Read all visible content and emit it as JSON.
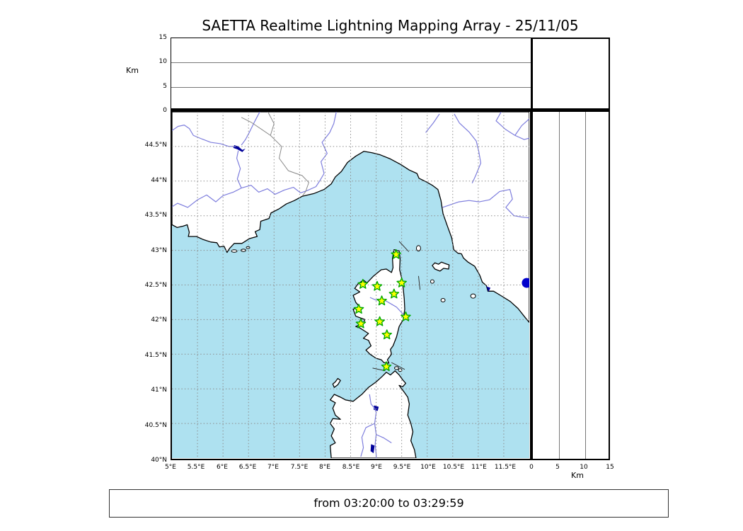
{
  "title": "SAETTA Realtime Lightning Mapping Array - 25/11/05",
  "footer": {
    "time_range": "from 03:20:00 to 03:29:59"
  },
  "colors": {
    "sea": "#aee1f0",
    "land": "#ffffff",
    "coast": "#000000",
    "river": "#7d7ddd",
    "country_border": "#8a8a8a",
    "grid": "#8c8c8c",
    "lake": "#000099",
    "star_fill": "#ffff00",
    "star_stroke": "#00a800",
    "lightning_dot": "#0000cc",
    "frame": "#000000"
  },
  "altitude_panel": {
    "axis_label": "Km",
    "ticks": [
      0,
      5,
      10,
      15
    ],
    "max": 15
  },
  "right_panel": {
    "axis_label": "Km",
    "ticks": [
      0,
      5,
      10,
      15
    ],
    "max": 15
  },
  "map": {
    "lon_min": 5,
    "lon_max": 12,
    "lat_min": 40,
    "lat_max": 45,
    "lat_tick_step": 0.5,
    "lon_tick_step": 0.5,
    "lat_labels": [
      "40°N",
      "40.5°N",
      "41°N",
      "41.5°N",
      "42°N",
      "42.5°N",
      "43°N",
      "43.5°N",
      "44°N",
      "44.5°N"
    ],
    "lon_labels": [
      "5°E",
      "5.5°E",
      "6°E",
      "6.5°E",
      "7°E",
      "7.5°E",
      "8°E",
      "8.5°E",
      "9°E",
      "9.5°E",
      "10°E",
      "10.5°E",
      "11°E",
      "11.5°E"
    ]
  },
  "stations": [
    [
      9.39,
      42.94
    ],
    [
      8.74,
      42.51
    ],
    [
      9.02,
      42.48
    ],
    [
      9.5,
      42.53
    ],
    [
      9.35,
      42.37
    ],
    [
      9.11,
      42.27
    ],
    [
      8.66,
      42.15
    ],
    [
      9.58,
      42.04
    ],
    [
      9.07,
      41.97
    ],
    [
      8.7,
      41.94
    ],
    [
      9.21,
      41.78
    ],
    [
      9.2,
      41.32
    ]
  ],
  "lightning_dot": {
    "lon": 11.95,
    "lat": 42.53,
    "radius": 7
  },
  "geo": {
    "land": [
      [
        [
          5.0,
          45.0
        ],
        [
          5.0,
          43.37
        ],
        [
          5.1,
          43.33
        ],
        [
          5.22,
          43.35
        ],
        [
          5.3,
          43.37
        ],
        [
          5.34,
          43.26
        ],
        [
          5.32,
          43.2
        ],
        [
          5.48,
          43.2
        ],
        [
          5.6,
          43.16
        ],
        [
          5.76,
          43.12
        ],
        [
          5.88,
          43.11
        ],
        [
          5.93,
          43.05
        ],
        [
          6.02,
          43.06
        ],
        [
          6.08,
          42.97
        ],
        [
          6.13,
          43.03
        ],
        [
          6.22,
          43.1
        ],
        [
          6.37,
          43.1
        ],
        [
          6.52,
          43.17
        ],
        [
          6.67,
          43.2
        ],
        [
          6.63,
          43.27
        ],
        [
          6.72,
          43.3
        ],
        [
          6.74,
          43.42
        ],
        [
          6.9,
          43.46
        ],
        [
          6.94,
          43.54
        ],
        [
          7.1,
          43.6
        ],
        [
          7.24,
          43.67
        ],
        [
          7.4,
          43.72
        ],
        [
          7.55,
          43.78
        ],
        [
          7.78,
          43.82
        ],
        [
          7.98,
          43.88
        ],
        [
          8.12,
          43.96
        ],
        [
          8.2,
          44.06
        ],
        [
          8.32,
          44.14
        ],
        [
          8.44,
          44.27
        ],
        [
          8.6,
          44.36
        ],
        [
          8.76,
          44.43
        ],
        [
          8.92,
          44.41
        ],
        [
          9.08,
          44.38
        ],
        [
          9.28,
          44.32
        ],
        [
          9.48,
          44.24
        ],
        [
          9.65,
          44.16
        ],
        [
          9.8,
          44.11
        ],
        [
          9.84,
          44.04
        ],
        [
          9.98,
          43.99
        ],
        [
          10.1,
          43.94
        ],
        [
          10.21,
          43.88
        ],
        [
          10.27,
          43.72
        ],
        [
          10.31,
          43.53
        ],
        [
          10.4,
          43.34
        ],
        [
          10.48,
          43.18
        ],
        [
          10.52,
          43.01
        ],
        [
          10.6,
          42.96
        ],
        [
          10.67,
          42.95
        ],
        [
          10.71,
          42.89
        ],
        [
          10.8,
          42.83
        ],
        [
          10.93,
          42.77
        ],
        [
          11.03,
          42.64
        ],
        [
          11.08,
          42.54
        ],
        [
          11.16,
          42.49
        ],
        [
          11.19,
          42.41
        ],
        [
          11.3,
          42.41
        ],
        [
          11.48,
          42.33
        ],
        [
          11.63,
          42.26
        ],
        [
          11.78,
          42.16
        ],
        [
          11.93,
          42.02
        ],
        [
          12.0,
          41.96
        ],
        [
          12.0,
          45.0
        ]
      ],
      [
        [
          9.35,
          43.01
        ],
        [
          9.45,
          42.99
        ],
        [
          9.47,
          42.88
        ],
        [
          9.46,
          42.72
        ],
        [
          9.5,
          42.6
        ],
        [
          9.53,
          42.45
        ],
        [
          9.55,
          42.3
        ],
        [
          9.56,
          42.15
        ],
        [
          9.53,
          42.0
        ],
        [
          9.45,
          41.9
        ],
        [
          9.4,
          41.75
        ],
        [
          9.33,
          41.62
        ],
        [
          9.28,
          41.57
        ],
        [
          9.3,
          41.5
        ],
        [
          9.22,
          41.42
        ],
        [
          9.25,
          41.37
        ],
        [
          9.15,
          41.38
        ],
        [
          9.1,
          41.42
        ],
        [
          9.0,
          41.44
        ],
        [
          8.88,
          41.5
        ],
        [
          8.8,
          41.56
        ],
        [
          8.9,
          41.62
        ],
        [
          8.85,
          41.7
        ],
        [
          8.75,
          41.73
        ],
        [
          8.85,
          41.8
        ],
        [
          8.68,
          41.88
        ],
        [
          8.6,
          41.9
        ],
        [
          8.75,
          41.95
        ],
        [
          8.78,
          42.0
        ],
        [
          8.6,
          42.05
        ],
        [
          8.55,
          42.15
        ],
        [
          8.68,
          42.18
        ],
        [
          8.6,
          42.25
        ],
        [
          8.55,
          42.35
        ],
        [
          8.68,
          42.4
        ],
        [
          8.58,
          42.45
        ],
        [
          8.65,
          42.52
        ],
        [
          8.75,
          42.57
        ],
        [
          8.82,
          42.53
        ],
        [
          8.95,
          42.63
        ],
        [
          9.1,
          42.72
        ],
        [
          9.2,
          42.73
        ],
        [
          9.3,
          42.68
        ],
        [
          9.33,
          42.75
        ],
        [
          9.32,
          42.88
        ]
      ],
      [
        [
          8.12,
          40.0
        ],
        [
          8.1,
          40.18
        ],
        [
          8.2,
          40.22
        ],
        [
          8.12,
          40.32
        ],
        [
          8.18,
          40.42
        ],
        [
          8.1,
          40.5
        ],
        [
          8.15,
          40.57
        ],
        [
          8.3,
          40.56
        ],
        [
          8.2,
          40.62
        ],
        [
          8.15,
          40.72
        ],
        [
          8.2,
          40.8
        ],
        [
          8.1,
          40.84
        ],
        [
          8.18,
          40.92
        ],
        [
          8.3,
          40.88
        ],
        [
          8.4,
          40.84
        ],
        [
          8.55,
          40.82
        ],
        [
          8.65,
          40.88
        ],
        [
          8.72,
          40.92
        ],
        [
          8.85,
          41.02
        ],
        [
          9.0,
          41.1
        ],
        [
          9.12,
          41.18
        ],
        [
          9.2,
          41.24
        ],
        [
          9.28,
          41.2
        ],
        [
          9.37,
          41.26
        ],
        [
          9.45,
          41.2
        ],
        [
          9.52,
          41.13
        ],
        [
          9.58,
          41.08
        ],
        [
          9.52,
          41.03
        ],
        [
          9.45,
          41.05
        ],
        [
          9.55,
          40.95
        ],
        [
          9.62,
          40.88
        ],
        [
          9.65,
          40.78
        ],
        [
          9.62,
          40.62
        ],
        [
          9.68,
          40.5
        ],
        [
          9.72,
          40.38
        ],
        [
          9.68,
          40.25
        ],
        [
          9.75,
          40.12
        ],
        [
          9.78,
          40.0
        ]
      ],
      [
        [
          8.18,
          41.02
        ],
        [
          8.25,
          41.06
        ],
        [
          8.3,
          41.12
        ],
        [
          8.25,
          41.15
        ],
        [
          8.2,
          41.1
        ],
        [
          8.15,
          41.07
        ]
      ],
      [
        [
          10.1,
          42.78
        ],
        [
          10.15,
          42.82
        ],
        [
          10.22,
          42.8
        ],
        [
          10.28,
          42.83
        ],
        [
          10.35,
          42.81
        ],
        [
          10.43,
          42.79
        ],
        [
          10.42,
          42.73
        ],
        [
          10.32,
          42.74
        ],
        [
          10.25,
          42.7
        ],
        [
          10.15,
          42.73
        ]
      ]
    ],
    "islets": [
      [
        9.83,
        43.03,
        3,
        4
      ],
      [
        10.1,
        42.55,
        2.5,
        2.5
      ],
      [
        10.31,
        42.28,
        3,
        2.5
      ],
      [
        10.9,
        42.34,
        3.5,
        3
      ],
      [
        9.4,
        41.3,
        3,
        2
      ],
      [
        9.47,
        41.27,
        2.5,
        2
      ],
      [
        6.22,
        42.99,
        4,
        1.8
      ],
      [
        6.4,
        43.0,
        3.5,
        1.8
      ],
      [
        6.49,
        43.04,
        2.5,
        1.5
      ]
    ],
    "lakes": [
      [
        [
          6.22,
          44.52
        ],
        [
          6.3,
          44.5
        ],
        [
          6.38,
          44.45
        ],
        [
          6.44,
          44.47
        ],
        [
          6.38,
          44.42
        ],
        [
          6.28,
          44.46
        ],
        [
          6.2,
          44.48
        ]
      ],
      [
        [
          8.96,
          40.76
        ],
        [
          9.05,
          40.74
        ],
        [
          9.03,
          40.68
        ],
        [
          8.95,
          40.7
        ]
      ],
      [
        [
          8.9,
          40.2
        ],
        [
          8.97,
          40.18
        ],
        [
          8.95,
          40.07
        ],
        [
          8.89,
          40.1
        ]
      ],
      [
        [
          11.16,
          42.48
        ],
        [
          11.24,
          42.46
        ],
        [
          11.2,
          42.4
        ]
      ]
    ],
    "rivers": [
      [
        [
          5.0,
          44.73
        ],
        [
          5.12,
          44.79
        ],
        [
          5.24,
          44.81
        ],
        [
          5.34,
          44.76
        ],
        [
          5.42,
          44.66
        ],
        [
          5.58,
          44.61
        ],
        [
          5.76,
          44.56
        ],
        [
          5.95,
          44.54
        ],
        [
          6.12,
          44.5
        ],
        [
          6.24,
          44.5
        ]
      ],
      [
        [
          6.72,
          45.0
        ],
        [
          6.62,
          44.86
        ],
        [
          6.52,
          44.71
        ],
        [
          6.44,
          44.6
        ],
        [
          6.36,
          44.52
        ]
      ],
      [
        [
          6.3,
          44.44
        ],
        [
          6.27,
          44.33
        ],
        [
          6.34,
          44.18
        ],
        [
          6.28,
          44.03
        ],
        [
          6.36,
          43.9
        ],
        [
          6.2,
          43.84
        ],
        [
          6.0,
          43.79
        ],
        [
          5.86,
          43.7
        ],
        [
          5.68,
          43.8
        ],
        [
          5.5,
          43.73
        ],
        [
          5.31,
          43.62
        ],
        [
          5.11,
          43.68
        ],
        [
          5.0,
          43.63
        ]
      ],
      [
        [
          6.36,
          43.9
        ],
        [
          6.55,
          43.94
        ],
        [
          6.7,
          43.84
        ],
        [
          6.87,
          43.89
        ],
        [
          7.02,
          43.81
        ],
        [
          7.2,
          43.87
        ],
        [
          7.38,
          43.91
        ],
        [
          7.52,
          43.83
        ],
        [
          7.64,
          43.86
        ],
        [
          7.82,
          43.92
        ],
        [
          7.9,
          44.01
        ],
        [
          7.98,
          44.11
        ]
      ],
      [
        [
          7.98,
          44.11
        ],
        [
          7.92,
          44.28
        ],
        [
          8.04,
          44.4
        ],
        [
          7.94,
          44.56
        ],
        [
          8.09,
          44.7
        ],
        [
          8.17,
          44.83
        ],
        [
          8.22,
          45.0
        ]
      ],
      [
        [
          10.24,
          44.97
        ],
        [
          10.12,
          44.84
        ],
        [
          9.97,
          44.7
        ]
      ],
      [
        [
          10.53,
          44.97
        ],
        [
          10.63,
          44.84
        ],
        [
          10.82,
          44.71
        ],
        [
          10.96,
          44.58
        ],
        [
          11.01,
          44.43
        ],
        [
          11.05,
          44.26
        ],
        [
          10.95,
          44.08
        ],
        [
          10.88,
          43.97
        ]
      ],
      [
        [
          11.45,
          45.0
        ],
        [
          11.35,
          44.87
        ],
        [
          11.53,
          44.75
        ],
        [
          11.72,
          44.66
        ],
        [
          11.9,
          44.6
        ],
        [
          12.0,
          44.62
        ]
      ],
      [
        [
          12.0,
          44.9
        ],
        [
          11.85,
          44.8
        ],
        [
          11.72,
          44.66
        ]
      ],
      [
        [
          10.3,
          43.62
        ],
        [
          10.46,
          43.66
        ],
        [
          10.62,
          43.7
        ],
        [
          10.82,
          43.72
        ],
        [
          11.02,
          43.7
        ],
        [
          11.22,
          43.73
        ],
        [
          11.42,
          43.85
        ],
        [
          11.62,
          43.88
        ],
        [
          11.67,
          43.74
        ],
        [
          11.54,
          43.62
        ],
        [
          11.7,
          43.5
        ],
        [
          11.86,
          43.48
        ],
        [
          12.0,
          43.47
        ]
      ],
      [
        [
          8.88,
          42.32
        ],
        [
          9.0,
          42.28
        ],
        [
          9.12,
          42.3
        ],
        [
          9.26,
          42.24
        ],
        [
          9.4,
          42.18
        ],
        [
          9.5,
          42.1
        ],
        [
          9.57,
          42.05
        ]
      ],
      [
        [
          8.87,
          40.92
        ],
        [
          8.9,
          40.78
        ],
        [
          8.97,
          40.72
        ],
        [
          9.0,
          40.66
        ],
        [
          8.97,
          40.5
        ],
        [
          9.0,
          40.34
        ],
        [
          8.98,
          40.2
        ],
        [
          9.0,
          40.05
        ],
        [
          9.0,
          40.0
        ]
      ],
      [
        [
          8.97,
          40.5
        ],
        [
          8.8,
          40.44
        ],
        [
          8.72,
          40.3
        ],
        [
          8.75,
          40.15
        ],
        [
          8.7,
          40.02
        ]
      ],
      [
        [
          9.0,
          40.34
        ],
        [
          9.15,
          40.29
        ],
        [
          9.3,
          40.22
        ]
      ]
    ],
    "country_borders": [
      [
        [
          6.88,
          45.0
        ],
        [
          7.0,
          44.83
        ],
        [
          6.93,
          44.66
        ],
        [
          7.15,
          44.5
        ],
        [
          7.1,
          44.33
        ],
        [
          7.28,
          44.15
        ],
        [
          7.55,
          44.08
        ],
        [
          7.68,
          43.98
        ],
        [
          7.62,
          43.85
        ],
        [
          7.56,
          43.79
        ]
      ],
      [
        [
          6.36,
          44.92
        ],
        [
          6.55,
          44.85
        ],
        [
          6.75,
          44.75
        ],
        [
          6.93,
          44.66
        ]
      ]
    ],
    "seams": [
      [
        [
          9.45,
          43.13
        ],
        [
          9.64,
          42.98
        ]
      ],
      [
        [
          9.83,
          42.63
        ],
        [
          9.86,
          42.43
        ]
      ],
      [
        [
          8.93,
          41.3
        ],
        [
          9.18,
          41.26
        ]
      ],
      [
        [
          9.3,
          41.38
        ],
        [
          9.56,
          41.28
        ]
      ]
    ]
  }
}
